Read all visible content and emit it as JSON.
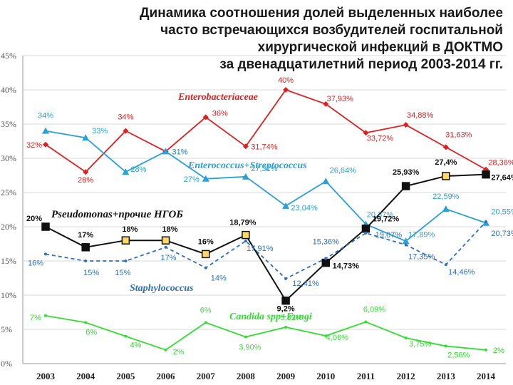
{
  "chart_data": {
    "type": "line",
    "title_lines": [
      "Динамика соотношения долей выделенных наиболее",
      "часто встречающихся возбудителей госпитальной",
      "хирургической инфекций в ДОКТМО",
      "за двенадцатилетний период 2003-2014 гг."
    ],
    "categories": [
      "2003",
      "2004",
      "2005",
      "2006",
      "2007",
      "2008",
      "2009",
      "2010",
      "2011",
      "2012",
      "2013",
      "2014"
    ],
    "y_ticks": [
      "0%",
      "5%",
      "10%",
      "15%",
      "20%",
      "25%",
      "30%",
      "35%",
      "40%",
      "45%"
    ],
    "ylim": [
      0,
      45
    ],
    "grid": "horizontal",
    "series": [
      {
        "name": "Enterobacteriaceae",
        "color": "#e02020",
        "values": [
          32,
          28,
          34,
          31,
          36,
          31.74,
          40,
          37.93,
          33.72,
          34.88,
          31.63,
          28.36
        ],
        "labels": [
          "32%",
          "28%",
          "34%",
          "31%",
          "36%",
          "31,74%",
          "40%",
          "37,93%",
          "33,72%",
          "34,88%",
          "31,63%",
          "28,36%"
        ]
      },
      {
        "name": "Enterococcus+Streptococcus",
        "color": "#2aa0d8",
        "values": [
          34,
          33,
          28,
          31,
          27,
          27.31,
          23.04,
          26.64,
          20.37,
          17.89,
          22.59,
          20.55
        ],
        "labels": [
          "34%",
          "33%",
          "28%",
          "31%",
          "27%",
          "27,31%",
          "23,04%",
          "26,64%",
          "20,37%",
          "17,89%",
          "22,59%",
          "20,55%"
        ]
      },
      {
        "name": "Pseudomonas+прочие НГОБ",
        "color": "#111111",
        "values": [
          20,
          17,
          18,
          18,
          16,
          18.79,
          9.2,
          14.73,
          19.72,
          25.93,
          27.4,
          27.64
        ],
        "labels": [
          "20%",
          "17%",
          "18%",
          "18%",
          "16%",
          "18,79%",
          "9,2%",
          "14,73%",
          "19,72%",
          "25,93%",
          "27,4%",
          "27,64%"
        ]
      },
      {
        "name": "Staphylococcus",
        "color": "#2f6fc0",
        "values": [
          16,
          15,
          15,
          17,
          14,
          17.91,
          12.41,
          15.36,
          19.07,
          17.35,
          14.46,
          20.73
        ],
        "labels": [
          "16%",
          "15%",
          "15%",
          "17%",
          "14%",
          "17,91%",
          "12,41%",
          "15,36%",
          "19,07%",
          "17,35%",
          "14,46%",
          "20,73%"
        ]
      },
      {
        "name": "Candida spp+Fungi",
        "color": "#33dd33",
        "values": [
          7,
          6,
          4,
          2,
          6,
          3.9,
          5.32,
          4.06,
          6.09,
          3.75,
          2.56,
          2
        ],
        "labels": [
          "7%",
          "6%",
          "4%",
          "2%",
          "6%",
          "3,90%",
          "5,32%",
          "4,06%",
          "6,09%",
          "3,75%",
          "2,56%",
          "2%"
        ]
      }
    ]
  }
}
